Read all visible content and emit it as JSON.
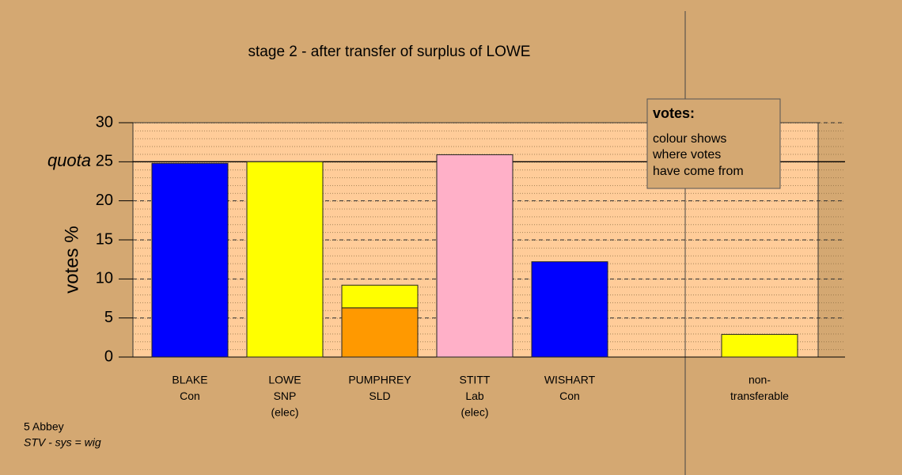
{
  "chart_data": {
    "type": "bar",
    "stacked": true,
    "title": "stage 2 - after transfer of surplus of LOWE",
    "y_label": "votes %",
    "categories": [
      [
        "BLAKE",
        "Con"
      ],
      [
        "LOWE",
        "SNP",
        "(elec)"
      ],
      [
        "PUMPHREY",
        "SLD"
      ],
      [
        "STITT",
        "Lab",
        "(elec)"
      ],
      [
        "WISHART",
        "Con"
      ],
      null,
      [
        "non-",
        "transferable"
      ]
    ],
    "series": [
      {
        "color": "#0000ff",
        "values": [
          24.8,
          null,
          null,
          null,
          12.2,
          null,
          null
        ]
      },
      {
        "color": "#ff9900",
        "values": [
          null,
          null,
          6.3,
          null,
          null,
          null,
          null
        ]
      },
      {
        "color": "#ffb0c8",
        "values": [
          null,
          null,
          null,
          25.9,
          null,
          null,
          null
        ]
      },
      {
        "color": "#ffff00",
        "values": [
          null,
          25,
          2.9,
          null,
          null,
          null,
          2.9
        ]
      }
    ],
    "ylim": [
      0,
      30
    ],
    "yticks": [
      0,
      5,
      10,
      15,
      20,
      25,
      30
    ],
    "quota": {
      "value": 25,
      "label": "quota"
    },
    "legend": {
      "title": "votes:",
      "lines": [
        "colour shows",
        "where votes",
        "have come from"
      ]
    },
    "footer": [
      "5 Abbey",
      "STV - sys = wig"
    ]
  }
}
